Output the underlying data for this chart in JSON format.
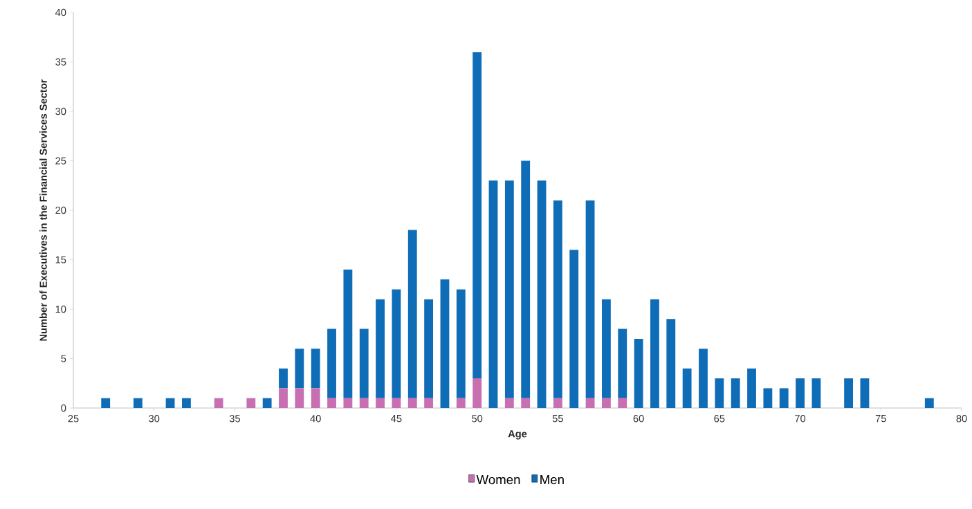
{
  "chart_data": {
    "type": "bar",
    "stacked": true,
    "xlabel": "Age",
    "ylabel": "Number of Executives in the Financial Services  Sector",
    "x": [
      27,
      29,
      31,
      32,
      34,
      36,
      37,
      38,
      39,
      40,
      41,
      42,
      43,
      44,
      45,
      46,
      47,
      48,
      49,
      50,
      51,
      52,
      53,
      54,
      55,
      56,
      57,
      58,
      59,
      60,
      61,
      62,
      63,
      64,
      65,
      66,
      67,
      68,
      69,
      70,
      71,
      73,
      74,
      78
    ],
    "series": [
      {
        "name": "Women",
        "color": "#c86fb2",
        "values": [
          0,
          0,
          0,
          0,
          1,
          1,
          0,
          2,
          2,
          2,
          1,
          1,
          1,
          1,
          1,
          1,
          1,
          0,
          1,
          3,
          0,
          1,
          1,
          0,
          1,
          0,
          1,
          1,
          1,
          0,
          0,
          0,
          0,
          0,
          0,
          0,
          0,
          0,
          0,
          0,
          0,
          0,
          0,
          0
        ]
      },
      {
        "name": "Men",
        "color": "#0f6db8",
        "values": [
          1,
          1,
          1,
          1,
          0,
          0,
          1,
          2,
          4,
          4,
          7,
          13,
          7,
          10,
          11,
          17,
          10,
          13,
          11,
          33,
          23,
          22,
          24,
          23,
          20,
          16,
          20,
          10,
          7,
          7,
          11,
          9,
          4,
          6,
          3,
          3,
          4,
          2,
          2,
          3,
          3,
          3,
          3,
          1
        ]
      }
    ],
    "xlim": [
      25,
      80
    ],
    "xticks": [
      25,
      30,
      35,
      40,
      45,
      50,
      55,
      60,
      65,
      70,
      75,
      80
    ],
    "ylim": [
      0,
      40
    ],
    "yticks": [
      0,
      5,
      10,
      15,
      20,
      25,
      30,
      35,
      40
    ],
    "grid": false,
    "legend": "bottom"
  }
}
